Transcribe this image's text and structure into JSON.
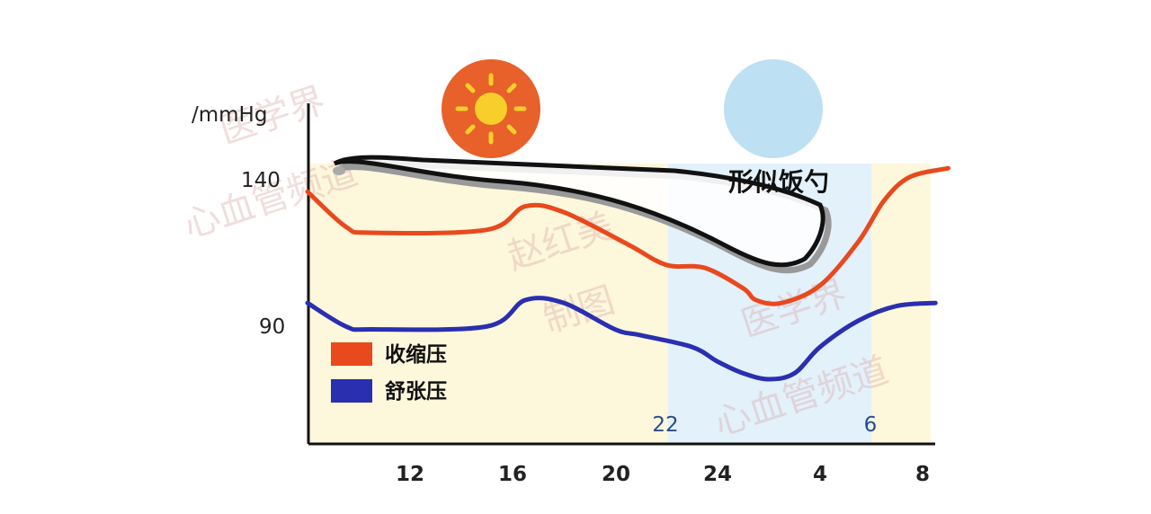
{
  "chart_data": {
    "type": "line",
    "unit_label": "/mmHg",
    "x_ticks": [
      "12",
      "16",
      "20",
      "24",
      "4",
      "8"
    ],
    "y_ticks": [
      "90",
      "140"
    ],
    "ylim": [
      50,
      165
    ],
    "night_band": {
      "start_label": "22",
      "end_label": "6"
    },
    "series": [
      {
        "name": "收缩压",
        "color": "#e8491d",
        "x": [
          8,
          9.5,
          10.5,
          15,
          16.5,
          18,
          20.5,
          22,
          23.5,
          25,
          25.5,
          26.5,
          28,
          29.5,
          30.5,
          31.5,
          33
        ],
        "values": [
          135,
          123,
          121,
          122,
          130,
          128,
          117,
          110,
          109,
          102,
          98,
          97,
          103,
          118,
          132,
          140,
          143
        ]
      },
      {
        "name": "舒张压",
        "color": "#2a2fb0",
        "x": [
          8,
          9.5,
          10.5,
          15,
          16.5,
          18,
          20,
          21,
          23,
          24,
          25,
          26,
          27,
          28,
          29.5,
          31,
          32.5
        ],
        "values": [
          97,
          89,
          88,
          89,
          98,
          97,
          88,
          86,
          82,
          77,
          73,
          71,
          73,
          82,
          91,
          96,
          97
        ]
      }
    ],
    "annotation": "形似饭勺",
    "legend": [
      {
        "label": "收缩压",
        "color": "#e8491d"
      },
      {
        "label": "舒张压",
        "color": "#2a2fb0"
      }
    ],
    "legend_position": "bottom-left",
    "icons": [
      "sun-icon",
      "moon-icon"
    ]
  },
  "watermarks": [
    "医学界",
    "心血管频道",
    "赵红美",
    "制图"
  ]
}
